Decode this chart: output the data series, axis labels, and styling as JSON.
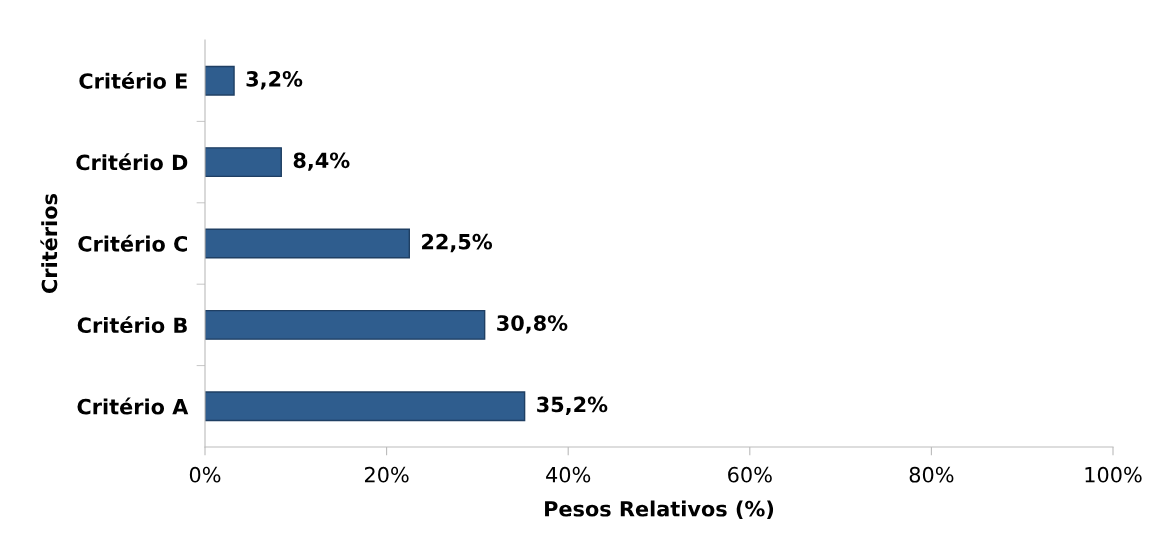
{
  "chart_data": {
    "type": "bar",
    "orientation": "horizontal",
    "categories": [
      "Critério E",
      "Critério D",
      "Critério C",
      "Critério B",
      "Critério A"
    ],
    "values": [
      3.2,
      8.4,
      22.5,
      30.8,
      35.2
    ],
    "value_labels": [
      "3,2%",
      "8,4%",
      "22,5%",
      "30,8%",
      "35,2%"
    ],
    "color": "#2f5d8e",
    "xlim": [
      0,
      100
    ],
    "xticks": [
      {
        "value": 0,
        "label": "0%"
      },
      {
        "value": 20,
        "label": "20%"
      },
      {
        "value": 40,
        "label": "40%"
      },
      {
        "value": 60,
        "label": "60%"
      },
      {
        "value": 80,
        "label": "80%"
      },
      {
        "value": 100,
        "label": "100%"
      }
    ],
    "xlabel": "Pesos Relativos (%)",
    "ylabel": "Critérios",
    "grid": false
  }
}
